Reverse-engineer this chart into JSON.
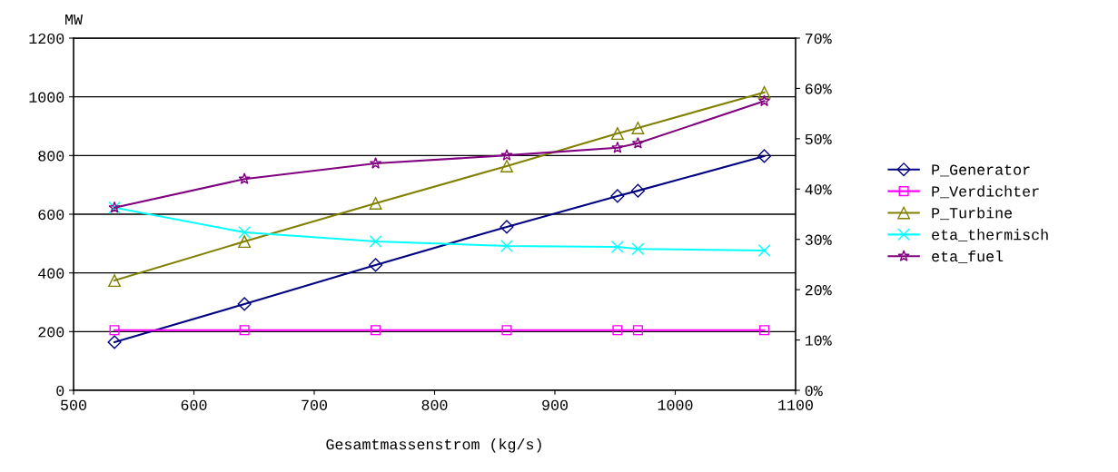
{
  "chart_data": {
    "type": "line",
    "xlabel": "Gesamtmassenstrom (kg/s)",
    "ylabel": "MW",
    "x": [
      534,
      642,
      751,
      860,
      952,
      969,
      1074
    ],
    "series": [
      {
        "name": "P_Generator",
        "color": "#000080",
        "marker": "diamond",
        "values": [
          164,
          294,
          427,
          557,
          662,
          680,
          798
        ]
      },
      {
        "name": "P_Verdichter",
        "color": "#ff00ff",
        "marker": "square",
        "values": [
          205,
          205,
          205,
          205,
          205,
          205,
          205
        ]
      },
      {
        "name": "P_Turbine",
        "color": "#808000",
        "marker": "triangle",
        "values": [
          374,
          507,
          637,
          764,
          875,
          894,
          1015
        ]
      },
      {
        "name": "eta_thermisch",
        "color": "#00ffff",
        "marker": "cross",
        "axis": "y2",
        "values": [
          36.3,
          31.4,
          29.6,
          28.7,
          28.5,
          28.1,
          27.8
        ]
      },
      {
        "name": "eta_fuel",
        "color": "#800080",
        "marker": "star",
        "axis": "y2",
        "values": [
          36.3,
          42.0,
          45.1,
          46.7,
          48.2,
          49.1,
          57.5
        ]
      }
    ],
    "xlim": [
      500,
      1100
    ],
    "xticks": [
      500,
      600,
      700,
      800,
      900,
      1000,
      1100
    ],
    "ylim": [
      0,
      1200
    ],
    "yticks": [
      0,
      200,
      400,
      600,
      800,
      1000,
      1200
    ],
    "y2lim": [
      0,
      70
    ],
    "y2ticks": [
      {
        "value": 0,
        "label": "0%"
      },
      {
        "value": 10,
        "label": "10%"
      },
      {
        "value": 20,
        "label": "20%"
      },
      {
        "value": 30,
        "label": "30%"
      },
      {
        "value": 40,
        "label": "40%"
      },
      {
        "value": 50,
        "label": "50%"
      },
      {
        "value": 60,
        "label": "60%"
      },
      {
        "value": 70,
        "label": "70%"
      }
    ],
    "grid": "y",
    "legend": "right",
    "line_style": "solid"
  }
}
